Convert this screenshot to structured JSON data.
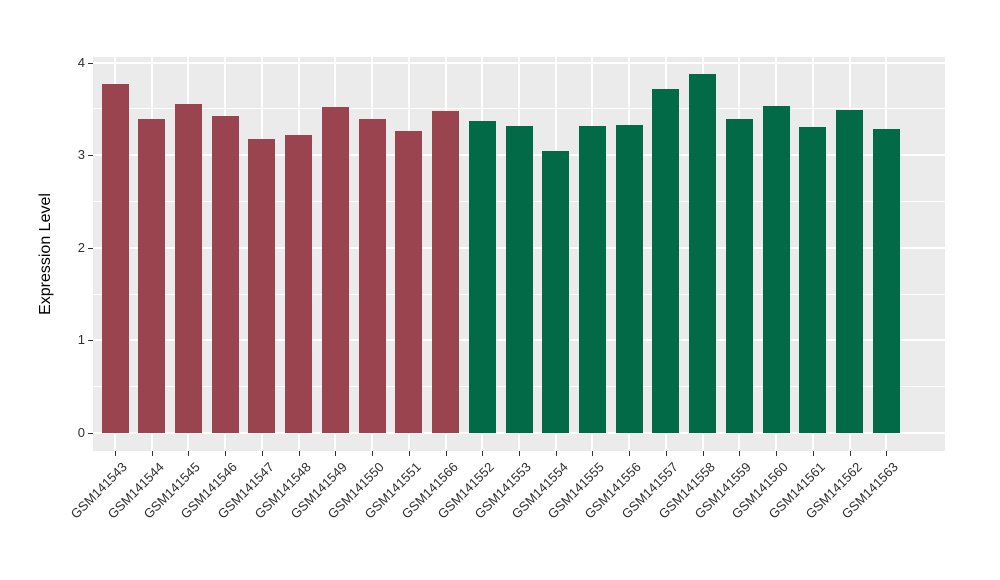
{
  "chart_data": {
    "type": "bar",
    "title": "",
    "xlabel": "",
    "ylabel": "Expression Level",
    "ylim": [
      0,
      4
    ],
    "y_ticks": [
      "0",
      "1",
      "2",
      "3",
      "4"
    ],
    "y_tick_values": [
      0,
      1,
      2,
      3,
      4
    ],
    "y_minor_tick_values": [
      0.5,
      1.5,
      2.5,
      3.5
    ],
    "grid": "on",
    "legend_position": "none",
    "panel_background_color": "#EBEBEB",
    "grid_color": "#FFFFFF",
    "tick_color": "#333333",
    "group_colors": {
      "maroon": "#9A4450",
      "green": "#026A47"
    },
    "bars": [
      {
        "label": "GSM141543",
        "value": 3.77,
        "group": "maroon"
      },
      {
        "label": "GSM141544",
        "value": 3.39,
        "group": "maroon"
      },
      {
        "label": "GSM141545",
        "value": 3.55,
        "group": "maroon"
      },
      {
        "label": "GSM141546",
        "value": 3.42,
        "group": "maroon"
      },
      {
        "label": "GSM141547",
        "value": 3.18,
        "group": "maroon"
      },
      {
        "label": "GSM141548",
        "value": 3.22,
        "group": "maroon"
      },
      {
        "label": "GSM141549",
        "value": 3.52,
        "group": "maroon"
      },
      {
        "label": "GSM141550",
        "value": 3.39,
        "group": "maroon"
      },
      {
        "label": "GSM141551",
        "value": 3.26,
        "group": "maroon"
      },
      {
        "label": "GSM141566",
        "value": 3.48,
        "group": "maroon"
      },
      {
        "label": "GSM141552",
        "value": 3.37,
        "group": "green"
      },
      {
        "label": "GSM141553",
        "value": 3.32,
        "group": "green"
      },
      {
        "label": "GSM141554",
        "value": 3.05,
        "group": "green"
      },
      {
        "label": "GSM141555",
        "value": 3.31,
        "group": "green"
      },
      {
        "label": "GSM141556",
        "value": 3.33,
        "group": "green"
      },
      {
        "label": "GSM141557",
        "value": 3.71,
        "group": "green"
      },
      {
        "label": "GSM141558",
        "value": 3.88,
        "group": "green"
      },
      {
        "label": "GSM141559",
        "value": 3.39,
        "group": "green"
      },
      {
        "label": "GSM141560",
        "value": 3.53,
        "group": "green"
      },
      {
        "label": "GSM141561",
        "value": 3.3,
        "group": "green"
      },
      {
        "label": "GSM141562",
        "value": 3.49,
        "group": "green"
      },
      {
        "label": "GSM141563",
        "value": 3.28,
        "group": "green"
      }
    ]
  }
}
